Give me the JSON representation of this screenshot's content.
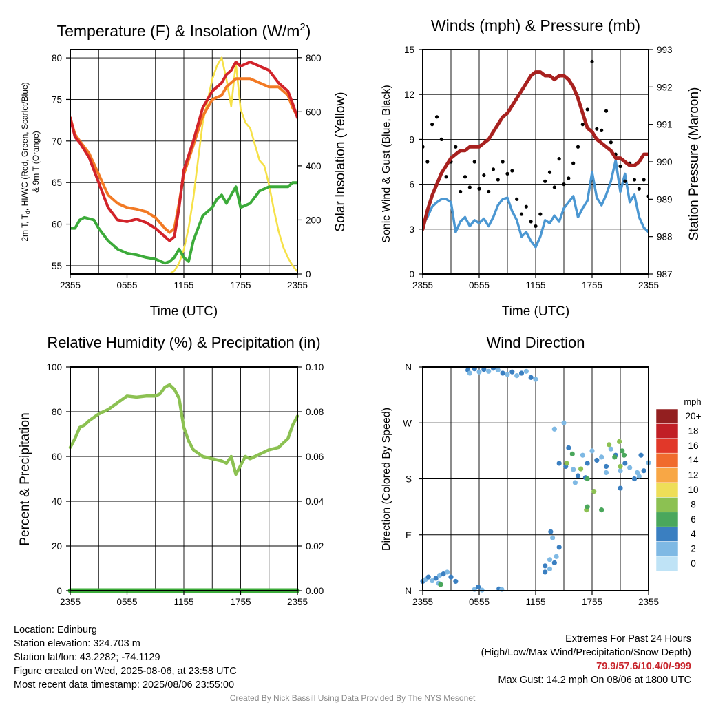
{
  "charts": {
    "temperature": {
      "title": "Temperature (F) & Insolation (W/m",
      "title_sup": "2",
      "title_end": ")",
      "xlabel": "Time (UTC)",
      "ylabel_left_1": "2m T, T",
      "ylabel_left_sub": "d",
      "ylabel_left_2": ", HI/WC (Red, Green, Scarlet/Blue)",
      "ylabel_left_3": "& 9m T (Orange)",
      "ylabel_right": "Solar Insolation (Yellow)"
    },
    "winds": {
      "title": "Winds (mph) & Pressure (mb)",
      "xlabel": "Time (UTC)",
      "ylabel_left": "Sonic Wind & Gust (Blue, Black)",
      "ylabel_right": "Station Pressure (Maroon)"
    },
    "humidity": {
      "title": "Relative Humidity (%) & Precipitation (in)",
      "ylabel_left": "Percent & Precipitation"
    },
    "direction": {
      "title": "Wind Direction",
      "ylabel_left": "Direction (Colored By Speed)",
      "legend_title": "mph"
    }
  },
  "info": {
    "location": "Location: Edinburg",
    "elevation": "Station elevation: 324.703 m",
    "latlon": "Station lat/lon: 43.2282; -74.1129",
    "created": "Figure created on Wed, 2025-08-06, at 23:58 UTC",
    "recent": "Most recent data timestamp: 2025/08/06 23:55:00",
    "extremes_title": "Extremes For Past 24 Hours",
    "extremes_desc": "(High/Low/Max Wind/Precipitation/Snow Depth)",
    "extremes_values": "79.9/57.6/10.4/0/-999",
    "max_gust": "Max Gust: 14.2 mph On 08/06 at 1800 UTC"
  },
  "credit": "Created By Nick Bassill Using Data Provided By The NYS Mesonet",
  "chart_data": [
    {
      "id": "temperature",
      "type": "line",
      "x_ticks": [
        "2355",
        "0555",
        "1155",
        "1755",
        "2355"
      ],
      "x_range_hours": [
        0,
        24
      ],
      "ylim": [
        54,
        81
      ],
      "y_ticks": [
        55,
        60,
        65,
        70,
        75,
        80
      ],
      "y2lim": [
        0,
        830
      ],
      "y2_ticks": [
        0,
        200,
        400,
        600,
        800
      ],
      "grid": true,
      "series": [
        {
          "color": "#d2232a",
          "axis": "left",
          "x": [
            0,
            0.5,
            1,
            2,
            3,
            4,
            5,
            6,
            7,
            8,
            9,
            10,
            10.5,
            11,
            11.5,
            12,
            13,
            14,
            15,
            16,
            16.5,
            17,
            17.5,
            18,
            19,
            20,
            21,
            22,
            23,
            23.5,
            24
          ],
          "y": [
            72.8,
            70.5,
            69.8,
            68,
            65,
            62,
            60.5,
            60.3,
            60.6,
            60.2,
            59.5,
            58.5,
            58,
            58.5,
            62,
            66.5,
            70,
            74,
            76,
            77,
            78,
            78.5,
            79.5,
            79,
            79.5,
            79,
            78.5,
            77,
            76,
            74.5,
            72.8
          ]
        },
        {
          "color": "#f27a24",
          "axis": "left",
          "x": [
            0,
            0.5,
            1,
            2,
            3,
            4,
            5,
            6,
            7,
            8,
            9,
            10,
            10.5,
            11,
            11.5,
            12,
            13,
            14,
            15,
            16,
            16.5,
            17,
            17.5,
            18,
            19,
            20,
            21,
            22,
            23,
            23.5,
            24
          ],
          "y": [
            72.8,
            70.8,
            70,
            68.5,
            66,
            63.5,
            62.5,
            62,
            61.8,
            61.5,
            60.8,
            59.5,
            59,
            59.5,
            62.5,
            66,
            69.5,
            73,
            75,
            75.5,
            76.5,
            77,
            77.5,
            77.5,
            77.5,
            77,
            76.5,
            76.5,
            75.5,
            74,
            73
          ]
        },
        {
          "color": "#3cab3a",
          "axis": "left",
          "x": [
            0,
            0.5,
            1,
            1.5,
            2.5,
            3,
            4,
            5,
            6,
            7,
            8,
            9,
            10,
            10.5,
            11,
            11.5,
            12,
            12.5,
            13,
            13.5,
            14,
            15,
            15.5,
            16,
            16.5,
            17,
            17.5,
            18,
            19,
            20,
            21,
            22,
            23,
            23.5,
            24
          ],
          "y": [
            59.5,
            59.5,
            60.5,
            60.8,
            60.5,
            59.5,
            58,
            57,
            56.5,
            56.3,
            56,
            55.8,
            55.3,
            55.5,
            56,
            57,
            56,
            55.5,
            58,
            59.5,
            61,
            62,
            63,
            63.5,
            62.5,
            63.5,
            64.5,
            62,
            62.5,
            64,
            64.5,
            64.5,
            64.5,
            65,
            65
          ]
        },
        {
          "color": "#f6e148",
          "axis": "right",
          "x": [
            0,
            1,
            2,
            3,
            4,
            5,
            6,
            7,
            8,
            9,
            10,
            10.5,
            11,
            11.5,
            12,
            12.5,
            13,
            13.5,
            14,
            14.5,
            15,
            15.5,
            16,
            16.5,
            17,
            17.5,
            18,
            18.5,
            19,
            19.5,
            20,
            20.5,
            21,
            21.5,
            22,
            22.5,
            23,
            23.5,
            24
          ],
          "y": [
            0,
            0,
            0,
            0,
            0,
            0,
            0,
            0,
            0,
            0,
            0,
            0,
            12,
            40,
            90,
            170,
            280,
            420,
            560,
            640,
            720,
            770,
            800,
            720,
            620,
            780,
            610,
            560,
            540,
            480,
            420,
            400,
            330,
            240,
            160,
            100,
            60,
            30,
            10
          ]
        }
      ]
    },
    {
      "id": "winds",
      "type": "line",
      "x_ticks": [
        "2355",
        "0555",
        "1155",
        "1755",
        "2355"
      ],
      "x_range_hours": [
        0,
        24
      ],
      "ylim": [
        0,
        15
      ],
      "y_ticks": [
        0,
        3,
        6,
        9,
        12,
        15
      ],
      "y2lim": [
        987,
        993
      ],
      "y2_ticks": [
        987,
        988,
        989,
        990,
        991,
        992,
        993
      ],
      "grid": true,
      "series": [
        {
          "color": "#4b97d2",
          "axis": "left",
          "x": [
            0,
            0.5,
            1,
            1.5,
            2,
            2.5,
            3,
            3.5,
            4,
            4.5,
            5,
            5.5,
            6,
            6.5,
            7,
            7.5,
            8,
            8.5,
            9,
            9.5,
            10,
            10.5,
            11,
            11.5,
            12,
            12.5,
            13,
            13.5,
            14,
            14.5,
            15,
            15.5,
            16,
            16.5,
            17,
            17.5,
            18,
            18.5,
            19,
            19.5,
            20,
            20.5,
            21,
            21.5,
            22,
            22.5,
            23,
            23.5,
            24
          ],
          "y": [
            3.3,
            3.8,
            4.5,
            4.8,
            5,
            5,
            4.8,
            2.8,
            3.5,
            3.8,
            3.2,
            3.6,
            3.4,
            3.7,
            3.2,
            3.8,
            4.6,
            5,
            5.1,
            4.2,
            3.6,
            2.5,
            2.8,
            2.2,
            1.8,
            2.5,
            3.6,
            3.4,
            3.9,
            3.5,
            4.4,
            4.8,
            5.2,
            3.8,
            4.4,
            4.9,
            6.8,
            5.1,
            4.6,
            5.3,
            6.2,
            7.6,
            5.5,
            6.7,
            4.8,
            5.3,
            3.8,
            3.1,
            2.8
          ]
        },
        {
          "color": "#a8211f",
          "axis": "right",
          "x": [
            0,
            0.5,
            1,
            1.5,
            2,
            2.5,
            3,
            3.5,
            4,
            4.5,
            5,
            5.5,
            6,
            6.5,
            7,
            7.5,
            8,
            8.5,
            9,
            9.5,
            10,
            10.5,
            11,
            11.5,
            12,
            12.5,
            13,
            13.5,
            14,
            14.5,
            15,
            15.5,
            16,
            16.5,
            17,
            17.5,
            18,
            18.5,
            19,
            19.5,
            20,
            20.5,
            21,
            21.5,
            22,
            22.5,
            23,
            23.5,
            24
          ],
          "y": [
            988.2,
            988.7,
            989.1,
            989.4,
            989.7,
            989.9,
            990.1,
            990.2,
            990.3,
            990.3,
            990.4,
            990.4,
            990.4,
            990.5,
            990.6,
            990.8,
            991,
            991.2,
            991.3,
            991.5,
            991.7,
            991.9,
            992.1,
            992.3,
            992.4,
            992.4,
            992.3,
            992.3,
            992.2,
            992.3,
            992.3,
            992.2,
            992,
            991.7,
            991.3,
            990.9,
            990.8,
            990.6,
            990.5,
            990.4,
            990.3,
            990.1,
            990.1,
            990,
            989.9,
            989.9,
            990,
            990.2,
            990.2
          ]
        },
        {
          "color": "#000000",
          "axis": "left",
          "style": "points",
          "x": [
            0,
            0.5,
            1,
            1.5,
            2,
            2.5,
            3,
            3.5,
            4,
            4.5,
            5,
            5.5,
            6,
            6.5,
            7,
            7.5,
            8,
            8.5,
            9,
            9.5,
            10,
            10.5,
            11,
            11.5,
            12,
            12.5,
            13,
            13.5,
            14,
            14.5,
            15,
            15.5,
            16,
            16.5,
            17,
            17.5,
            18,
            18.5,
            19,
            19.5,
            20,
            20.5,
            21,
            21.5,
            22,
            22.5,
            23,
            23.5,
            24
          ],
          "y": [
            8.5,
            7.5,
            10,
            10.5,
            9,
            6.5,
            7.5,
            8.5,
            5.5,
            6.5,
            5.8,
            7.5,
            5.7,
            6.6,
            5.5,
            7,
            6.3,
            7.5,
            6.7,
            6.9,
            5,
            4,
            4.5,
            3.5,
            3.2,
            4,
            6.2,
            6.8,
            5.8,
            7.7,
            6,
            6.4,
            7.4,
            8.5,
            10,
            11,
            14.2,
            9.7,
            9.6,
            10.9,
            8.8,
            8,
            7.2,
            6.2,
            7.4,
            6.3,
            5.7,
            6.3,
            5.2
          ]
        }
      ]
    },
    {
      "id": "humidity",
      "type": "line",
      "x_ticks": [
        "2355",
        "0555",
        "1155",
        "1755",
        "2355"
      ],
      "x_range_hours": [
        0,
        24
      ],
      "ylim": [
        0,
        100
      ],
      "y_ticks": [
        0,
        20,
        40,
        60,
        80,
        100
      ],
      "y2lim": [
        0,
        0.1
      ],
      "y2_ticks": [
        0,
        0.02,
        0.04,
        0.06,
        0.08,
        0.1
      ],
      "grid": true,
      "series": [
        {
          "color": "#8cc152",
          "axis": "left",
          "x": [
            0,
            0.5,
            1,
            1.5,
            2,
            3,
            4,
            5,
            6,
            7,
            8,
            9,
            9.5,
            10,
            10.5,
            11,
            11.5,
            12,
            12.5,
            13,
            14,
            15,
            16,
            16.5,
            17,
            17.5,
            18,
            18.5,
            19,
            20,
            21,
            22,
            23,
            23.5,
            24
          ],
          "y": [
            64,
            68,
            73,
            74,
            76,
            79,
            81,
            84,
            87,
            86.5,
            87,
            87,
            88,
            91,
            92,
            90,
            86,
            73,
            67,
            63,
            60,
            59,
            58,
            57,
            60,
            52,
            56,
            60,
            59,
            61,
            63,
            64,
            68,
            74,
            78
          ]
        },
        {
          "color": "#3cab3a",
          "axis": "right",
          "x": [
            0,
            24
          ],
          "y": [
            0,
            0
          ]
        }
      ]
    },
    {
      "id": "direction",
      "type": "scatter",
      "x_ticks": [
        "2355",
        "0555",
        "1155",
        "1755",
        "2355"
      ],
      "x_range_hours": [
        0,
        24
      ],
      "y_ticks": [
        "N",
        "E",
        "S",
        "W",
        "N"
      ],
      "ylim": [
        0,
        360
      ],
      "grid": true,
      "legend": {
        "title": "mph",
        "labels": [
          "20+",
          "18",
          "16",
          "14",
          "12",
          "10",
          "8",
          "6",
          "4",
          "2",
          "0"
        ],
        "colors": [
          "#931f20",
          "#c11f26",
          "#e13829",
          "#f06b2d",
          "#f8a745",
          "#eede58",
          "#8cc152",
          "#4aa75c",
          "#3a7fc1",
          "#7fb9e4",
          "#bfe3f6"
        ]
      },
      "series": [
        {
          "style": "points",
          "colors": [
            "#3a7fc1",
            "#7fb9e4"
          ],
          "x": [
            0,
            0.3,
            0.6,
            1,
            1.4,
            1.8,
            2.2,
            2.6,
            3,
            1.7,
            3.5,
            5.5,
            5.9,
            6.3,
            8.1,
            8.4,
            4.8,
            5,
            5.5,
            6,
            6.5,
            7,
            7.5,
            8,
            8.5,
            9,
            9.5,
            10,
            10.5,
            11,
            11.5,
            12,
            13,
            13.5,
            13,
            13.5,
            14,
            14.2,
            14.5,
            13.8,
            13.6,
            14,
            14.5,
            15,
            15.5,
            16,
            16.5,
            17,
            17.5,
            18,
            18.5,
            19,
            19.5,
            20,
            20.5,
            21,
            21.5,
            22,
            22.5,
            23,
            23.5,
            24,
            15.2,
            16.2,
            17.3,
            19.5,
            21,
            22.8,
            23.2
          ],
          "y": [
            15,
            18,
            22,
            16,
            20,
            25,
            27,
            30,
            22,
            12,
            15,
            2,
            6,
            1,
            3,
            2,
            355,
            350,
            357,
            352,
            356,
            353,
            358,
            355,
            350,
            348,
            352,
            346,
            350,
            353,
            343,
            340,
            40,
            50,
            30,
            35,
            45,
            55,
            70,
            85,
            95,
            260,
            205,
            270,
            230,
            195,
            185,
            218,
            205,
            225,
            210,
            215,
            200,
            228,
            218,
            193,
            205,
            198,
            180,
            184,
            193,
            206,
            200,
            174,
            182,
            190,
            165,
            190,
            218
          ]
        },
        {
          "style": "points",
          "colors": [
            "#4aa75c",
            "#8cc152"
          ],
          "x": [
            1.9,
            15.3,
            15.9,
            16.8,
            17.5,
            18.2,
            19,
            19.8,
            20.4,
            21,
            21.4,
            17.4,
            17.5,
            20.9,
            21.2
          ],
          "y": [
            10,
            205,
            220,
            196,
            180,
            160,
            130,
            235,
            215,
            200,
            218,
            130,
            135,
            240,
            225
          ]
        }
      ]
    }
  ]
}
